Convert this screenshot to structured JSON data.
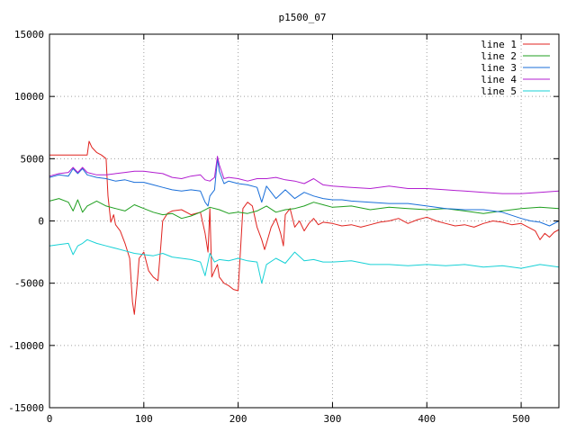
{
  "chart_data": {
    "type": "line",
    "title": "p1500_07",
    "xlabel": "",
    "ylabel": "",
    "xlim": [
      0,
      540
    ],
    "ylim": [
      -15000,
      15000
    ],
    "xticks": [
      0,
      100,
      200,
      300,
      400,
      500
    ],
    "yticks": [
      -15000,
      -10000,
      -5000,
      0,
      5000,
      10000,
      15000
    ],
    "grid": true,
    "legend_position": "top-right",
    "series": [
      {
        "name": "line 1",
        "color": "#e0231f",
        "x": [
          0,
          20,
          40,
          42,
          45,
          50,
          55,
          60,
          62,
          65,
          68,
          70,
          75,
          80,
          85,
          88,
          90,
          93,
          95,
          100,
          105,
          110,
          115,
          118,
          120,
          125,
          130,
          140,
          150,
          160,
          165,
          168,
          170,
          172,
          175,
          178,
          180,
          185,
          190,
          195,
          200,
          205,
          210,
          215,
          220,
          225,
          228,
          230,
          235,
          240,
          245,
          248,
          250,
          255,
          260,
          265,
          270,
          275,
          280,
          285,
          290,
          300,
          310,
          320,
          330,
          340,
          350,
          360,
          370,
          380,
          390,
          400,
          410,
          420,
          430,
          440,
          450,
          460,
          470,
          480,
          490,
          500,
          510,
          515,
          520,
          525,
          530,
          535,
          540
        ],
        "y": [
          5300,
          5300,
          5300,
          6400,
          5900,
          5500,
          5300,
          5000,
          2000,
          -100,
          500,
          -300,
          -800,
          -1800,
          -3000,
          -6500,
          -7500,
          -5000,
          -3000,
          -2500,
          -4000,
          -4500,
          -4800,
          -2000,
          0,
          600,
          800,
          900,
          500,
          700,
          -1000,
          -2500,
          1000,
          -4500,
          -4000,
          -3500,
          -4500,
          -5000,
          -5200,
          -5500,
          -5600,
          1000,
          1500,
          1200,
          -500,
          -1500,
          -2300,
          -1800,
          -500,
          200,
          -1000,
          -2000,
          500,
          1000,
          -500,
          0,
          -800,
          -200,
          200,
          -300,
          -100,
          -200,
          -400,
          -300,
          -500,
          -300,
          -100,
          0,
          200,
          -200,
          100,
          300,
          0,
          -200,
          -400,
          -300,
          -500,
          -200,
          0,
          -100,
          -300,
          -200,
          -600,
          -800,
          -1500,
          -1000,
          -1300,
          -900,
          -700
        ]
      },
      {
        "name": "line 2",
        "color": "#1f9f1f",
        "x": [
          0,
          10,
          20,
          25,
          30,
          35,
          40,
          50,
          60,
          70,
          80,
          90,
          100,
          110,
          120,
          130,
          140,
          150,
          160,
          170,
          180,
          190,
          200,
          210,
          220,
          230,
          240,
          250,
          260,
          270,
          280,
          290,
          300,
          320,
          340,
          360,
          380,
          400,
          420,
          440,
          460,
          480,
          500,
          520,
          540
        ],
        "y": [
          1600,
          1800,
          1500,
          800,
          1700,
          700,
          1200,
          1600,
          1200,
          1000,
          800,
          1300,
          1000,
          700,
          500,
          600,
          200,
          400,
          700,
          1100,
          900,
          600,
          700,
          600,
          800,
          1200,
          700,
          900,
          1000,
          1200,
          1500,
          1300,
          1100,
          1200,
          900,
          1100,
          1000,
          900,
          1000,
          800,
          600,
          800,
          1000,
          1100,
          1000
        ]
      },
      {
        "name": "line 3",
        "color": "#1a6fd9",
        "x": [
          0,
          10,
          20,
          25,
          30,
          35,
          40,
          50,
          60,
          70,
          80,
          90,
          100,
          110,
          120,
          130,
          140,
          150,
          160,
          165,
          168,
          170,
          175,
          178,
          180,
          185,
          190,
          200,
          210,
          220,
          225,
          230,
          240,
          250,
          260,
          270,
          280,
          290,
          300,
          310,
          320,
          340,
          360,
          380,
          400,
          420,
          440,
          460,
          480,
          500,
          510,
          520,
          530,
          540
        ],
        "y": [
          3500,
          3700,
          3600,
          4200,
          3800,
          4200,
          3700,
          3500,
          3400,
          3200,
          3300,
          3100,
          3100,
          2900,
          2700,
          2500,
          2400,
          2500,
          2400,
          1500,
          1200,
          2000,
          2500,
          5000,
          4000,
          3000,
          3200,
          3000,
          2900,
          2700,
          1500,
          2800,
          1800,
          2500,
          1800,
          2300,
          2000,
          1800,
          1700,
          1700,
          1600,
          1500,
          1400,
          1400,
          1200,
          1000,
          900,
          900,
          700,
          200,
          0,
          -100,
          -400,
          0
        ]
      },
      {
        "name": "line 4",
        "color": "#b21ed0",
        "x": [
          0,
          10,
          20,
          25,
          30,
          35,
          40,
          50,
          60,
          70,
          80,
          90,
          100,
          110,
          120,
          130,
          140,
          150,
          160,
          165,
          170,
          175,
          178,
          180,
          185,
          190,
          200,
          210,
          220,
          230,
          240,
          250,
          260,
          270,
          280,
          290,
          300,
          320,
          340,
          360,
          380,
          400,
          420,
          440,
          460,
          480,
          500,
          520,
          540
        ],
        "y": [
          3600,
          3800,
          3900,
          4300,
          3900,
          4300,
          3900,
          3700,
          3700,
          3800,
          3900,
          4000,
          4000,
          3900,
          3800,
          3500,
          3400,
          3600,
          3700,
          3300,
          3200,
          3500,
          5200,
          4500,
          3400,
          3500,
          3400,
          3200,
          3400,
          3400,
          3500,
          3300,
          3200,
          3000,
          3400,
          2900,
          2800,
          2700,
          2600,
          2800,
          2600,
          2600,
          2500,
          2400,
          2300,
          2200,
          2200,
          2300,
          2400
        ]
      },
      {
        "name": "line 5",
        "color": "#17d1d6",
        "x": [
          0,
          10,
          20,
          25,
          30,
          35,
          40,
          50,
          60,
          70,
          80,
          90,
          100,
          110,
          120,
          130,
          140,
          150,
          160,
          165,
          170,
          175,
          180,
          190,
          200,
          210,
          220,
          225,
          230,
          240,
          250,
          260,
          270,
          280,
          290,
          300,
          320,
          340,
          360,
          380,
          400,
          420,
          440,
          460,
          480,
          500,
          520,
          540
        ],
        "y": [
          -2000,
          -1900,
          -1800,
          -2700,
          -2000,
          -1800,
          -1500,
          -1800,
          -2000,
          -2200,
          -2400,
          -2600,
          -2700,
          -2800,
          -2600,
          -2900,
          -3000,
          -3100,
          -3300,
          -4400,
          -2600,
          -3300,
          -3100,
          -3200,
          -3000,
          -3200,
          -3300,
          -5000,
          -3500,
          -3000,
          -3400,
          -2500,
          -3200,
          -3100,
          -3300,
          -3300,
          -3200,
          -3500,
          -3500,
          -3600,
          -3500,
          -3600,
          -3500,
          -3700,
          -3600,
          -3800,
          -3500,
          -3700
        ]
      }
    ]
  }
}
